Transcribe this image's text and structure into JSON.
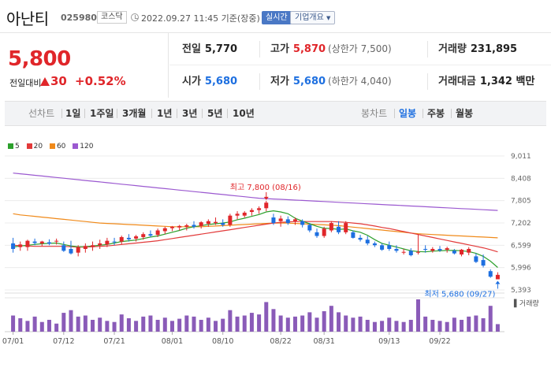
{
  "header": {
    "stock_name": "아난티",
    "stock_code": "025980",
    "market": "코스닥",
    "datetime": "2022.09.27 11:45 기준(장중)",
    "realtime_label": "실시간",
    "company_info_label": "기업개요"
  },
  "price": {
    "current": "5,800",
    "vs_label": "전일대비",
    "change": "30",
    "change_pct": "+0.52%"
  },
  "stats": {
    "prev_close": {
      "label": "전일",
      "value": "5,770"
    },
    "high": {
      "label": "고가",
      "value": "5,870",
      "sub": "(상한가 7,500)"
    },
    "volume": {
      "label": "거래량",
      "value": "231,895"
    },
    "open": {
      "label": "시가",
      "value": "5,680"
    },
    "low": {
      "label": "저가",
      "value": "5,680",
      "sub": "(하한가 4,040)"
    },
    "amount": {
      "label": "거래대금",
      "value": "1,342 백만"
    }
  },
  "tabs": {
    "chart_type_label": "선차트",
    "periods": [
      "1일",
      "1주일",
      "3개월",
      "1년",
      "3년",
      "5년",
      "10년"
    ],
    "candle_label": "봉차트",
    "candles": [
      "일봉",
      "주봉",
      "월봉"
    ],
    "active_candle": "일봉"
  },
  "legend": [
    {
      "label": "5",
      "color": "#2ca02c"
    },
    {
      "label": "20",
      "color": "#e23a3a"
    },
    {
      "label": "60",
      "color": "#f08a1a"
    },
    {
      "label": "120",
      "color": "#9b59d0"
    }
  ],
  "chart_data": {
    "type": "candlestick",
    "y_ticks": [
      "9,011",
      "8,408",
      "7,805",
      "7,202",
      "6,599",
      "5,996",
      "5,393"
    ],
    "ylim": [
      5393,
      9011
    ],
    "x_ticks": [
      "07/01",
      "07/12",
      "07/21",
      "08/01",
      "08/10",
      "08/22",
      "08/31",
      "09/13",
      "09/22"
    ],
    "high_annotation": "최고 7,800 (08/16)",
    "low_annotation": "최저 5,680 (09/27)",
    "volume_label": "거래량",
    "candles": [
      {
        "o": 6650,
        "h": 6800,
        "l": 6400,
        "c": 6500
      },
      {
        "o": 6550,
        "h": 6700,
        "l": 6450,
        "c": 6620
      },
      {
        "o": 6550,
        "h": 6750,
        "l": 6450,
        "c": 6720
      },
      {
        "o": 6700,
        "h": 6780,
        "l": 6600,
        "c": 6660
      },
      {
        "o": 6650,
        "h": 6720,
        "l": 6580,
        "c": 6700
      },
      {
        "o": 6680,
        "h": 6760,
        "l": 6600,
        "c": 6640
      },
      {
        "o": 6700,
        "h": 6780,
        "l": 6620,
        "c": 6720
      },
      {
        "o": 6600,
        "h": 6700,
        "l": 6420,
        "c": 6450
      },
      {
        "o": 6500,
        "h": 6720,
        "l": 6350,
        "c": 6380
      },
      {
        "o": 6400,
        "h": 6600,
        "l": 6300,
        "c": 6550
      },
      {
        "o": 6500,
        "h": 6650,
        "l": 6400,
        "c": 6580
      },
      {
        "o": 6550,
        "h": 6700,
        "l": 6450,
        "c": 6600
      },
      {
        "o": 6600,
        "h": 6750,
        "l": 6500,
        "c": 6650
      },
      {
        "o": 6620,
        "h": 6800,
        "l": 6550,
        "c": 6720
      },
      {
        "o": 6700,
        "h": 6800,
        "l": 6600,
        "c": 6680
      },
      {
        "o": 6700,
        "h": 6860,
        "l": 6620,
        "c": 6820
      },
      {
        "o": 6800,
        "h": 6900,
        "l": 6700,
        "c": 6760
      },
      {
        "o": 6780,
        "h": 6880,
        "l": 6700,
        "c": 6840
      },
      {
        "o": 6820,
        "h": 6950,
        "l": 6750,
        "c": 6900
      },
      {
        "o": 6900,
        "h": 7000,
        "l": 6820,
        "c": 6860
      },
      {
        "o": 6880,
        "h": 7050,
        "l": 6820,
        "c": 7000
      },
      {
        "o": 6980,
        "h": 7100,
        "l": 6900,
        "c": 7060
      },
      {
        "o": 7060,
        "h": 7120,
        "l": 6980,
        "c": 7100
      },
      {
        "o": 7080,
        "h": 7150,
        "l": 7000,
        "c": 7120
      },
      {
        "o": 7100,
        "h": 7180,
        "l": 7000,
        "c": 7140
      },
      {
        "o": 7150,
        "h": 7250,
        "l": 7050,
        "c": 7100
      },
      {
        "o": 7120,
        "h": 7250,
        "l": 7050,
        "c": 7220
      },
      {
        "o": 7180,
        "h": 7300,
        "l": 7100,
        "c": 7250
      },
      {
        "o": 7200,
        "h": 7350,
        "l": 7150,
        "c": 7230
      },
      {
        "o": 7200,
        "h": 7300,
        "l": 7100,
        "c": 7150
      },
      {
        "o": 7150,
        "h": 7450,
        "l": 7100,
        "c": 7400
      },
      {
        "o": 7400,
        "h": 7520,
        "l": 7300,
        "c": 7450
      },
      {
        "o": 7400,
        "h": 7520,
        "l": 7350,
        "c": 7480
      },
      {
        "o": 7500,
        "h": 7600,
        "l": 7400,
        "c": 7550
      },
      {
        "o": 7550,
        "h": 7650,
        "l": 7450,
        "c": 7600
      },
      {
        "o": 7600,
        "h": 7800,
        "l": 7520,
        "c": 7750
      },
      {
        "o": 7350,
        "h": 7450,
        "l": 7150,
        "c": 7200
      },
      {
        "o": 7250,
        "h": 7400,
        "l": 7100,
        "c": 7320
      },
      {
        "o": 7300,
        "h": 7380,
        "l": 7150,
        "c": 7200
      },
      {
        "o": 7250,
        "h": 7350,
        "l": 7150,
        "c": 7300
      },
      {
        "o": 7250,
        "h": 7300,
        "l": 7080,
        "c": 7150
      },
      {
        "o": 7150,
        "h": 7200,
        "l": 6950,
        "c": 7000
      },
      {
        "o": 6950,
        "h": 7050,
        "l": 6800,
        "c": 6850
      },
      {
        "o": 6850,
        "h": 7100,
        "l": 6800,
        "c": 7050
      },
      {
        "o": 7000,
        "h": 7250,
        "l": 6950,
        "c": 7200
      },
      {
        "o": 7100,
        "h": 7250,
        "l": 6900,
        "c": 6950
      },
      {
        "o": 6950,
        "h": 7250,
        "l": 6900,
        "c": 7200
      },
      {
        "o": 6950,
        "h": 7000,
        "l": 6780,
        "c": 6800
      },
      {
        "o": 6800,
        "h": 6880,
        "l": 6700,
        "c": 6750
      },
      {
        "o": 6750,
        "h": 6850,
        "l": 6600,
        "c": 6650
      },
      {
        "o": 6650,
        "h": 6700,
        "l": 6550,
        "c": 6600
      },
      {
        "o": 6600,
        "h": 6650,
        "l": 6450,
        "c": 6480
      },
      {
        "o": 6600,
        "h": 6700,
        "l": 6450,
        "c": 6500
      },
      {
        "o": 6500,
        "h": 6600,
        "l": 6400,
        "c": 6450
      },
      {
        "o": 6400,
        "h": 6500,
        "l": 6350,
        "c": 6420
      },
      {
        "o": 6450,
        "h": 6520,
        "l": 6300,
        "c": 6330
      },
      {
        "o": 6400,
        "h": 6900,
        "l": 6350,
        "c": 6420
      },
      {
        "o": 6500,
        "h": 6600,
        "l": 6400,
        "c": 6480
      },
      {
        "o": 6450,
        "h": 6550,
        "l": 6400,
        "c": 6500
      },
      {
        "o": 6500,
        "h": 6580,
        "l": 6420,
        "c": 6460
      },
      {
        "o": 6480,
        "h": 6560,
        "l": 6400,
        "c": 6520
      },
      {
        "o": 6450,
        "h": 6500,
        "l": 6350,
        "c": 6380
      },
      {
        "o": 6350,
        "h": 6500,
        "l": 6300,
        "c": 6480
      },
      {
        "o": 6400,
        "h": 6550,
        "l": 6330,
        "c": 6500
      },
      {
        "o": 6300,
        "h": 6380,
        "l": 6120,
        "c": 6150
      },
      {
        "o": 6200,
        "h": 6350,
        "l": 6000,
        "c": 6050
      },
      {
        "o": 5900,
        "h": 5950,
        "l": 5720,
        "c": 5750
      },
      {
        "o": 5680,
        "h": 5870,
        "l": 5680,
        "c": 5800
      }
    ],
    "ma5": [
      6550,
      6580,
      6600,
      6620,
      6640,
      6650,
      6660,
      6620,
      6580,
      6560,
      6560,
      6580,
      6600,
      6620,
      6660,
      6700,
      6720,
      6740,
      6780,
      6820,
      6850,
      6900,
      6950,
      7000,
      7060,
      7100,
      7130,
      7160,
      7180,
      7200,
      7230,
      7290,
      7330,
      7380,
      7430,
      7500,
      7530,
      7500,
      7450,
      7330,
      7250,
      7180,
      7110,
      7060,
      7050,
      7030,
      7040,
      6990,
      6950,
      6870,
      6750,
      6650,
      6600,
      6550,
      6500,
      6450,
      6430,
      6420,
      6440,
      6450,
      6460,
      6460,
      6450,
      6430,
      6380,
      6300,
      6170,
      6000
    ],
    "ma20": [
      6600,
      6590,
      6580,
      6570,
      6570,
      6570,
      6570,
      6570,
      6560,
      6550,
      6550,
      6560,
      6570,
      6580,
      6600,
      6620,
      6640,
      6660,
      6680,
      6700,
      6720,
      6750,
      6780,
      6810,
      6840,
      6870,
      6900,
      6930,
      6960,
      6990,
      7020,
      7050,
      7080,
      7110,
      7140,
      7170,
      7200,
      7220,
      7230,
      7240,
      7240,
      7240,
      7240,
      7240,
      7240,
      7230,
      7220,
      7200,
      7180,
      7150,
      7120,
      7080,
      7050,
      7010,
      6970,
      6930,
      6890,
      6850,
      6810,
      6770,
      6730,
      6690,
      6650,
      6610,
      6570,
      6530,
      6480,
      6420
    ],
    "ma60": [
      7450,
      7420,
      7400,
      7380,
      7360,
      7340,
      7320,
      7300,
      7280,
      7260,
      7240,
      7220,
      7200,
      7190,
      7180,
      7170,
      7160,
      7150,
      7140,
      7130,
      7120,
      7110,
      7100,
      7100,
      7100,
      7100,
      7100,
      7110,
      7120,
      7130,
      7140,
      7150,
      7160,
      7170,
      7180,
      7190,
      7200,
      7200,
      7200,
      7190,
      7180,
      7170,
      7160,
      7150,
      7140,
      7130,
      7110,
      7090,
      7070,
      7050,
      7030,
      7010,
      6990,
      6970,
      6950,
      6930,
      6910,
      6900,
      6890,
      6880,
      6870,
      6860,
      6850,
      6840,
      6830,
      6820,
      6810,
      6800
    ],
    "ma120": [
      8550,
      8530,
      8510,
      8490,
      8470,
      8450,
      8430,
      8410,
      8390,
      8370,
      8350,
      8330,
      8310,
      8290,
      8270,
      8250,
      8230,
      8210,
      8190,
      8170,
      8150,
      8130,
      8110,
      8090,
      8070,
      8050,
      8030,
      8010,
      7990,
      7970,
      7950,
      7930,
      7910,
      7890,
      7870,
      7860,
      7850,
      7840,
      7830,
      7820,
      7810,
      7800,
      7790,
      7780,
      7770,
      7760,
      7750,
      7740,
      7730,
      7720,
      7710,
      7700,
      7690,
      7680,
      7670,
      7660,
      7650,
      7640,
      7630,
      7620,
      7610,
      7600,
      7590,
      7580,
      7570,
      7560,
      7550,
      7540
    ],
    "volume": [
      30,
      25,
      20,
      28,
      18,
      22,
      15,
      35,
      40,
      28,
      30,
      22,
      26,
      20,
      18,
      32,
      25,
      20,
      28,
      30,
      22,
      26,
      20,
      24,
      30,
      28,
      22,
      26,
      20,
      24,
      40,
      28,
      30,
      35,
      32,
      55,
      42,
      30,
      26,
      28,
      30,
      36,
      26,
      38,
      48,
      36,
      30,
      26,
      28,
      22,
      18,
      20,
      26,
      20,
      18,
      22,
      60,
      28,
      22,
      20,
      18,
      26,
      22,
      28,
      30,
      25,
      48,
      14
    ]
  }
}
